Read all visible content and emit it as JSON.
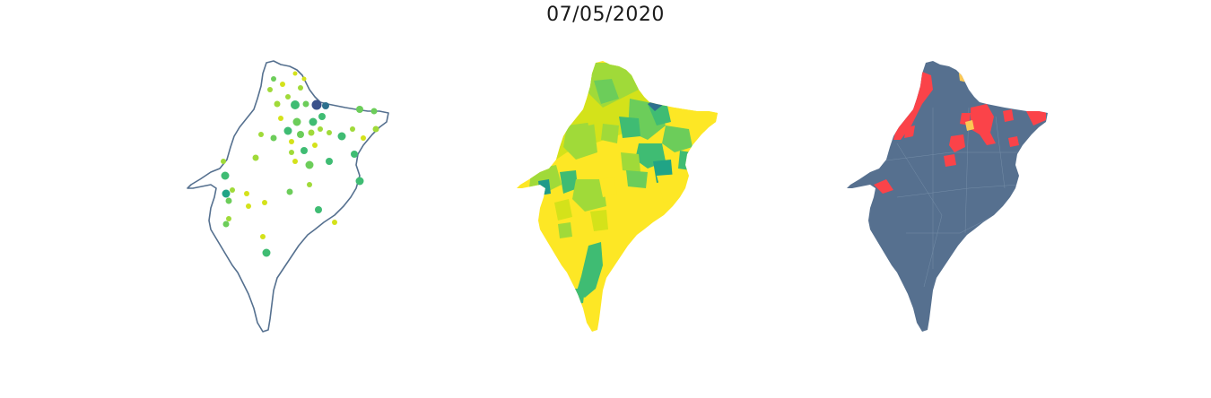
{
  "title": "07/05/2020",
  "colors": {
    "outline": "#55708f",
    "state_fill": "#56708f",
    "choropleth_scale": [
      "#fde725",
      "#d4e21a",
      "#a0da39",
      "#6ccd5a",
      "#3fbc73",
      "#20a486",
      "#1f9a8a",
      "#2d708e",
      "#3b528b"
    ],
    "classes": {
      "base": "#56708f",
      "high": "#fb4349",
      "medium": "#fcc854"
    }
  },
  "panels": [
    {
      "kind": "proportional-symbols",
      "icon": "map-points-icon"
    },
    {
      "kind": "choropleth",
      "icon": "map-choropleth-icon"
    },
    {
      "kind": "categorical",
      "icon": "map-classes-icon"
    }
  ]
}
